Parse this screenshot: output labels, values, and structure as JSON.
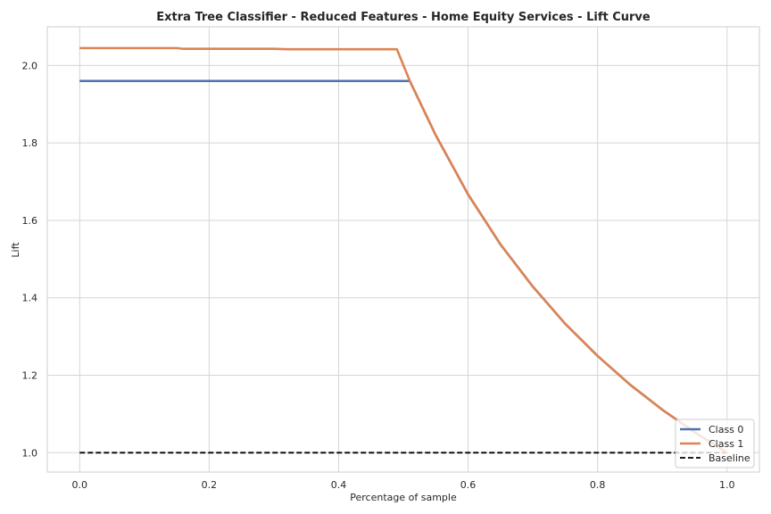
{
  "chart_data": {
    "type": "line",
    "title": "Extra Tree Classifier - Reduced Features - Home Equity Services - Lift Curve",
    "xlabel": "Percentage of sample",
    "ylabel": "Lift",
    "xlim": [
      -0.05,
      1.05
    ],
    "ylim": [
      0.95,
      2.1
    ],
    "xticks": [
      0.0,
      0.2,
      0.4,
      0.6,
      0.8,
      1.0
    ],
    "xtick_labels": [
      "0.0",
      "0.2",
      "0.4",
      "0.6",
      "0.8",
      "1.0"
    ],
    "yticks": [
      1.0,
      1.2,
      1.4,
      1.6,
      1.8,
      2.0
    ],
    "ytick_labels": [
      "1.0",
      "1.2",
      "1.4",
      "1.6",
      "1.8",
      "2.0"
    ],
    "grid": true,
    "legend_position": "lower-right",
    "series": [
      {
        "name": "Class 0",
        "color": "#4c72b0",
        "style": "solid",
        "x": [
          0.0,
          0.1,
          0.2,
          0.3,
          0.4,
          0.5,
          0.51,
          0.55,
          0.6,
          0.65,
          0.7,
          0.75,
          0.8,
          0.85,
          0.9,
          0.95,
          1.0
        ],
        "y": [
          1.96,
          1.96,
          1.96,
          1.96,
          1.96,
          1.96,
          1.96,
          1.82,
          1.667,
          1.538,
          1.429,
          1.333,
          1.25,
          1.176,
          1.111,
          1.053,
          1.0
        ]
      },
      {
        "name": "Class 1",
        "color": "#dd8452",
        "style": "solid",
        "x": [
          0.0,
          0.1,
          0.15,
          0.16,
          0.3,
          0.32,
          0.4,
          0.49,
          0.51,
          0.55,
          0.6,
          0.65,
          0.7,
          0.75,
          0.8,
          0.85,
          0.9,
          0.95,
          1.0
        ],
        "y": [
          2.045,
          2.045,
          2.045,
          2.043,
          2.043,
          2.042,
          2.042,
          2.042,
          1.96,
          1.82,
          1.667,
          1.538,
          1.429,
          1.333,
          1.25,
          1.176,
          1.111,
          1.053,
          1.0
        ]
      },
      {
        "name": "Baseline",
        "color": "#000000",
        "style": "dashed",
        "x": [
          0.0,
          1.0
        ],
        "y": [
          1.0,
          1.0
        ]
      }
    ]
  }
}
